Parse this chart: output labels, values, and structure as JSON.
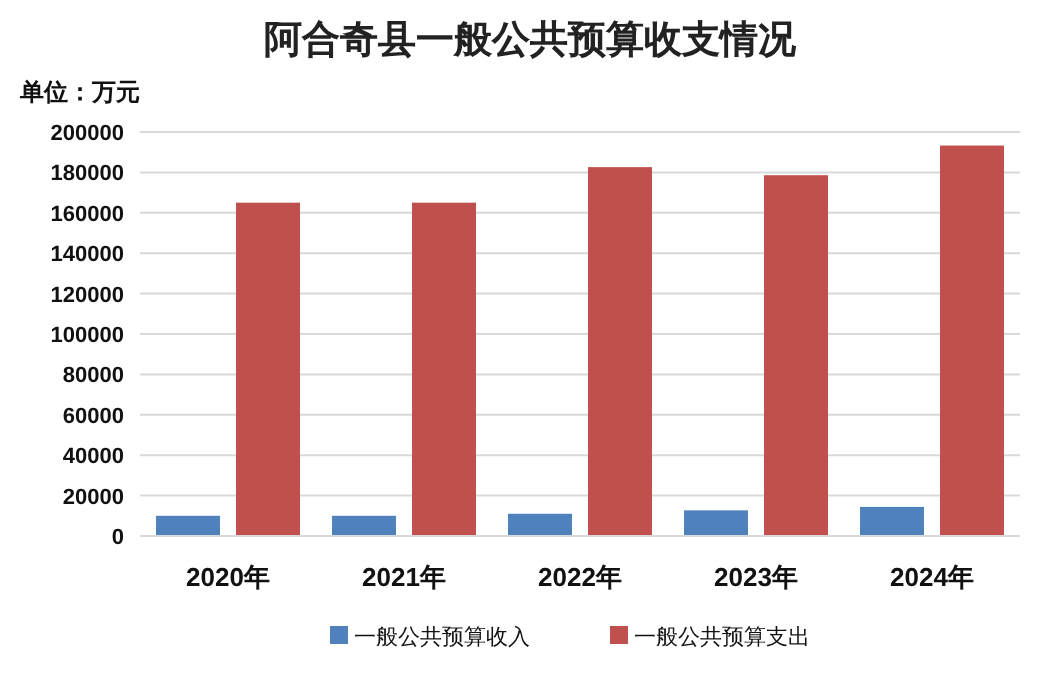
{
  "chart_data": {
    "type": "bar",
    "title": "阿合奇县一般公共预算收支情况",
    "ylabel": "单位：万元",
    "categories": [
      "2020年",
      "2021年",
      "2022年",
      "2023年",
      "2024年"
    ],
    "series": [
      {
        "name": "一般公共预算收入",
        "color": "#4f81bd",
        "values": [
          10000,
          10000,
          11000,
          12700,
          14400
        ]
      },
      {
        "name": "一般公共预算支出",
        "color": "#c0504d",
        "values": [
          165000,
          165000,
          182600,
          178600,
          193300
        ]
      }
    ],
    "ylim": [
      0,
      200000
    ],
    "yticks": [
      0,
      20000,
      40000,
      60000,
      80000,
      100000,
      120000,
      140000,
      160000,
      180000,
      200000
    ],
    "grid": "y",
    "legend": "bottom"
  }
}
